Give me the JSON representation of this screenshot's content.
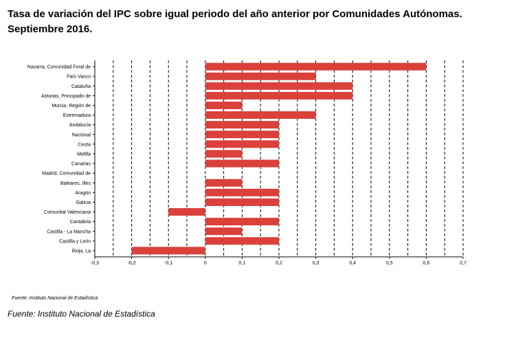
{
  "title_line1": "Tasa de variación del IPC sobre igual periodo del año anterior por Comunidades Autónomas.",
  "title_line2": "Septiembre 2016.",
  "source_small": "Fuente: Instituto Nacional de Estadística",
  "source_main": "Fuente: Instituto Nacional de Estadística",
  "chart_data": {
    "type": "bar",
    "orientation": "horizontal",
    "categories": [
      "Navarra, Comunidad Foral de",
      "País Vasco",
      "Cataluña",
      "Asturias, Principado de",
      "Murcia, Región de",
      "Extremadura",
      "Andalucía",
      "Nacional",
      "Ceuta",
      "Melilla",
      "Canarias",
      "Madrid, Comunidad de",
      "Baleares, Illes",
      "Aragón",
      "Galicia",
      "Comunitat Valenciana",
      "Cantabria",
      "Castilla - La Mancha",
      "Castilla y León",
      "Rioja, La"
    ],
    "values": [
      0.6,
      0.3,
      0.4,
      0.4,
      0.1,
      0.3,
      0.2,
      0.2,
      0.2,
      0.1,
      0.2,
      0.0,
      0.1,
      0.2,
      0.2,
      -0.1,
      0.2,
      0.1,
      0.2,
      -0.2
    ],
    "xlim": [
      -0.3,
      0.7
    ],
    "xticks": [
      "-0,3",
      "-0,2",
      "-0,1",
      "0",
      "0,1",
      "0,2",
      "0,3",
      "0,4",
      "0,5",
      "0,6",
      "0,7"
    ],
    "xtick_values": [
      -0.3,
      -0.2,
      -0.1,
      0,
      0.1,
      0.2,
      0.3,
      0.4,
      0.5,
      0.6,
      0.7
    ],
    "grid": "vertical-dashed",
    "bar_color": "#d9413a"
  }
}
